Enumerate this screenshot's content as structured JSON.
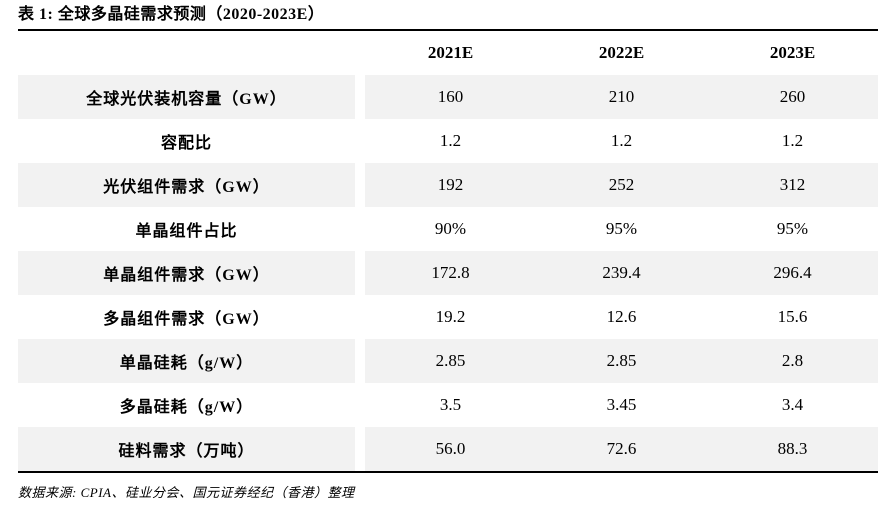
{
  "title": "表 1: 全球多晶硅需求预测（2020-2023E）",
  "table": {
    "columns": [
      "2021E",
      "2022E",
      "2023E"
    ],
    "rows": [
      {
        "label": "全球光伏装机容量（GW）",
        "values": [
          "160",
          "210",
          "260"
        ]
      },
      {
        "label": "容配比",
        "values": [
          "1.2",
          "1.2",
          "1.2"
        ]
      },
      {
        "label": "光伏组件需求（GW）",
        "values": [
          "192",
          "252",
          "312"
        ]
      },
      {
        "label": "单晶组件占比",
        "values": [
          "90%",
          "95%",
          "95%"
        ]
      },
      {
        "label": "单晶组件需求（GW）",
        "values": [
          "172.8",
          "239.4",
          "296.4"
        ]
      },
      {
        "label": "多晶组件需求（GW）",
        "values": [
          "19.2",
          "12.6",
          "15.6"
        ]
      },
      {
        "label": "单晶硅耗（g/W）",
        "values": [
          "2.85",
          "2.85",
          "2.8"
        ]
      },
      {
        "label": "多晶硅耗（g/W）",
        "values": [
          "3.5",
          "3.45",
          "3.4"
        ]
      },
      {
        "label": "硅料需求（万吨）",
        "values": [
          "56.0",
          "72.6",
          "88.3"
        ]
      }
    ],
    "stripe_color": "#f2f2f2",
    "rule_color": "#000000"
  },
  "footer": {
    "source": "数据来源: CPIA、硅业分会、国元证券经纪（香港）整理"
  }
}
